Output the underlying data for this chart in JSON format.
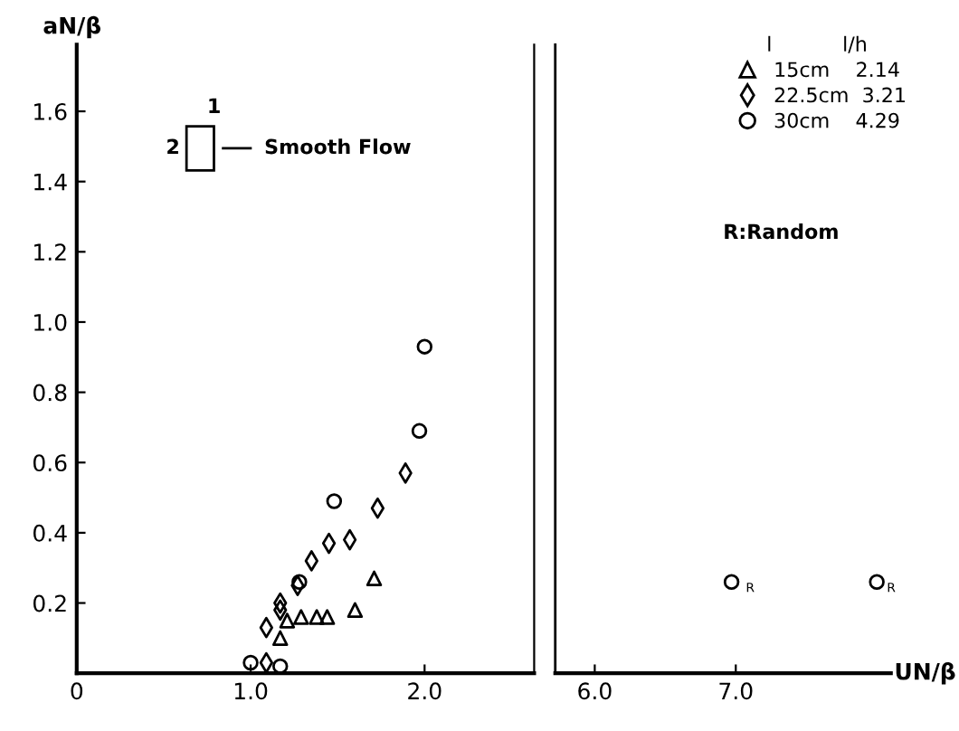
{
  "chart_data": [
    {
      "type": "scatter",
      "ylabel": "aN/β",
      "legend_title": "l           l/h",
      "legend": "top right",
      "annotations": [
        "1",
        "2",
        "Smooth Flow"
      ],
      "xlim": [
        0,
        2.63
      ],
      "ylim": [
        0,
        1.79
      ],
      "xticks": [
        0,
        {
          "value": 1,
          "label": "1.0"
        },
        {
          "value": 2,
          "label": "2.0"
        }
      ],
      "yticks": [
        0.2,
        0.4,
        0.6,
        0.8,
        {
          "value": 1,
          "label": "1.0"
        },
        1.2,
        1.4,
        1.6
      ],
      "series": [
        {
          "name": "15cm    2.14",
          "marker": "triangle",
          "color": "#000000",
          "x": [
            1.17,
            1.21,
            1.29,
            1.38,
            1.44,
            1.6,
            1.71
          ],
          "values": [
            0.1,
            0.15,
            0.16,
            0.16,
            0.16,
            0.18,
            0.27
          ]
        },
        {
          "name": "22.5cm  3.21",
          "marker": "diamond",
          "color": "#000000",
          "x": [
            1.09,
            1.09,
            1.17,
            1.17,
            1.27,
            1.35,
            1.45,
            1.57,
            1.73,
            1.89
          ],
          "values": [
            0.03,
            0.13,
            0.18,
            0.2,
            0.25,
            0.32,
            0.37,
            0.38,
            0.47,
            0.57
          ]
        },
        {
          "name": "30cm    4.29",
          "marker": "circle",
          "color": "#000000",
          "x": [
            1.0,
            1.17,
            1.28,
            1.48,
            1.97,
            2.0
          ],
          "values": [
            0.03,
            0.02,
            0.26,
            0.49,
            0.69,
            0.93
          ]
        }
      ]
    },
    {
      "type": "scatter",
      "xlabel": "UN/β",
      "tick_labels": "x",
      "annotations": [
        "R:Random",
        {
          "text": "R",
          "x": 7.0,
          "y": 0.26
        },
        {
          "text": "R",
          "x": 8.0,
          "y": 0.26
        }
      ],
      "xlim": [
        5.72,
        8.1
      ],
      "ylim": [
        0,
        1.79
      ],
      "xticks": [
        {
          "value": 6,
          "label": "6.0"
        },
        {
          "value": 7,
          "label": "7.0"
        }
      ],
      "series": [
        {
          "marker": "circle",
          "color": "#000000",
          "x": [
            6.97,
            8.0
          ],
          "values": [
            0.26,
            0.26
          ]
        }
      ]
    }
  ]
}
